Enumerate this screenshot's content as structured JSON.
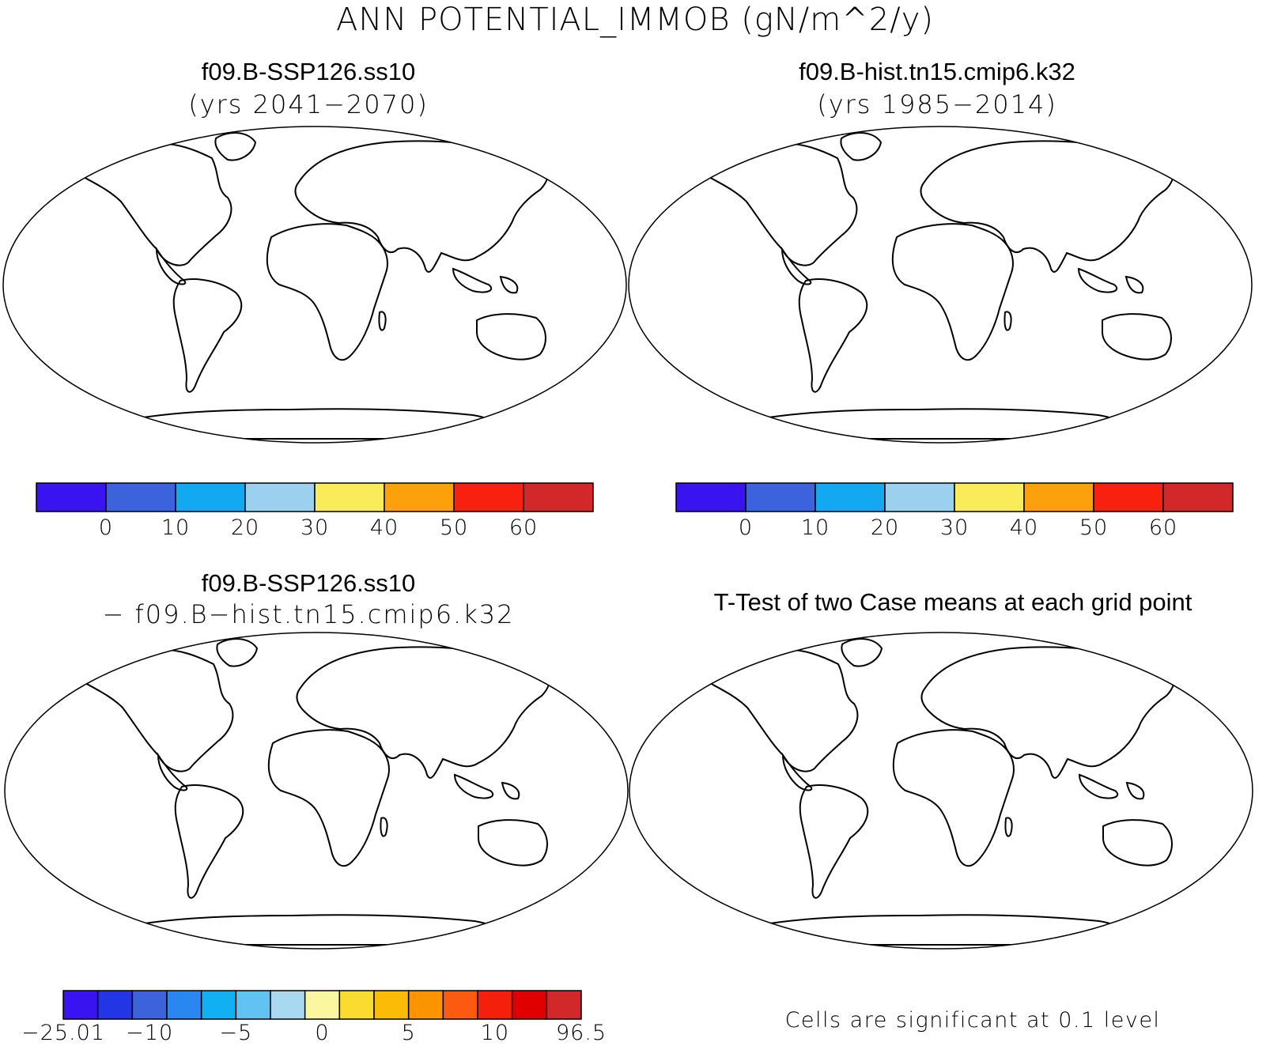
{
  "title": "ANN POTENTIAL_IMMOB (gN/m^2/y)",
  "panels": [
    {
      "id": "tl",
      "title": "f09.B-SSP126.ss10",
      "subtitle": "(yrs 2041−2070)"
    },
    {
      "id": "tr",
      "title": "f09.B-hist.tn15.cmip6.k32",
      "subtitle": "(yrs 1985−2014)"
    },
    {
      "id": "bl",
      "title": "f09.B-SSP126.ss10",
      "subtitle": "− f09.B−hist.tn15.cmip6.k32"
    },
    {
      "id": "br",
      "title": "T-Test of two Case means at each grid point",
      "note": "Cells are significant at 0.1 level"
    }
  ],
  "colorbar_main": {
    "colors": [
      "#3a14f0",
      "#3d63dc",
      "#12a9f0",
      "#9bd1ee",
      "#faeb5a",
      "#fca00c",
      "#f8200e",
      "#d2282a"
    ],
    "labels": [
      "0",
      "10",
      "20",
      "30",
      "40",
      "50",
      "60"
    ]
  },
  "colorbar_diff": {
    "colors": [
      "#3a14f0",
      "#2336e6",
      "#3d63dc",
      "#2a86f0",
      "#10b0f2",
      "#62c3f2",
      "#a9d9f0",
      "#fbf7a0",
      "#fadc30",
      "#fcbb06",
      "#fc9400",
      "#fb5a10",
      "#f4200c",
      "#e00000",
      "#d2282a"
    ],
    "labels": [
      "−25.01",
      "−10",
      "−5",
      "0",
      "5",
      "10",
      "96.5"
    ]
  },
  "ttest_color": "#ff0000"
}
